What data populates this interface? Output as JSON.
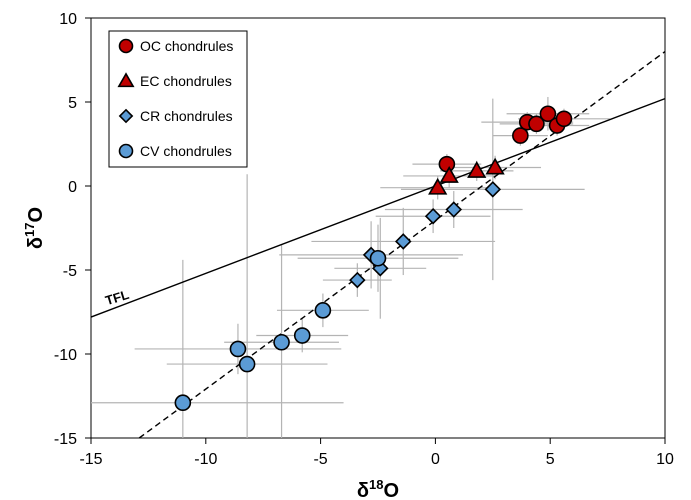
{
  "chart_data": {
    "type": "scatter",
    "xlabel_base": "δ",
    "xlabel_sup": "18",
    "xlabel_tail": "O",
    "ylabel_base": "δ",
    "ylabel_sup": "17",
    "ylabel_tail": "O",
    "xlim": [
      -15,
      10
    ],
    "ylim": [
      -15,
      10
    ],
    "x_ticks": [
      -15,
      -10,
      -5,
      0,
      5,
      10
    ],
    "y_ticks": [
      -15,
      -10,
      -5,
      0,
      5,
      10
    ],
    "x_tick_labels": [
      "-15",
      "-10",
      "-5",
      "0",
      "5",
      "10"
    ],
    "y_tick_labels": [
      "-15",
      "-10",
      "-5",
      "0",
      "5",
      "10"
    ],
    "grid": false,
    "legend_position": "top-left",
    "annotations": [
      {
        "text": "TFL",
        "x": -14.3,
        "y": -7.1
      }
    ],
    "reference_lines": [
      {
        "name": "TFL",
        "style": "solid",
        "x1": -15,
        "y1": -7.8,
        "x2": 10,
        "y2": 5.2
      },
      {
        "name": "",
        "style": "dashed",
        "x1": -12.9,
        "y1": -15,
        "x2": 10,
        "y2": 8.0
      }
    ],
    "series": [
      {
        "name": "OC chondrules",
        "marker": "circle",
        "color": "#c00000",
        "points": [
          {
            "x": 0.5,
            "y": 1.3,
            "xerr": 1.5,
            "yerr": 0.6
          },
          {
            "x": 3.7,
            "y": 3.0,
            "xerr": 1.2,
            "yerr": 0.6
          },
          {
            "x": 4.0,
            "y": 3.8,
            "xerr": 2.0,
            "yerr": 0.6
          },
          {
            "x": 4.4,
            "y": 3.7,
            "xerr": 1.6,
            "yerr": 0.6
          },
          {
            "x": 4.9,
            "y": 4.3,
            "xerr": 1.8,
            "yerr": 1.0
          },
          {
            "x": 5.3,
            "y": 3.6,
            "xerr": 1.4,
            "yerr": 0.6
          },
          {
            "x": 5.6,
            "y": 4.0,
            "xerr": 2.0,
            "yerr": 0.6
          }
        ]
      },
      {
        "name": "EC chondrules",
        "marker": "triangle",
        "color": "#c00000",
        "points": [
          {
            "x": 0.1,
            "y": -0.1,
            "xerr": 2.5,
            "yerr": 0.7
          },
          {
            "x": 0.6,
            "y": 0.6,
            "xerr": 2.0,
            "yerr": 0.7
          },
          {
            "x": 1.8,
            "y": 0.9,
            "xerr": 1.6,
            "yerr": 0.6
          },
          {
            "x": 2.6,
            "y": 1.1,
            "xerr": 2.0,
            "yerr": 0.7
          }
        ]
      },
      {
        "name": "CR chondrules",
        "marker": "diamond",
        "color": "#5b9bd5",
        "points": [
          {
            "x": 2.5,
            "y": -0.2,
            "xerr": 4.0,
            "yerr": 5.4
          },
          {
            "x": 0.8,
            "y": -1.4,
            "xerr": 3.0,
            "yerr": 1.1
          },
          {
            "x": -0.1,
            "y": -1.8,
            "xerr": 2.5,
            "yerr": 1.0
          },
          {
            "x": -1.4,
            "y": -3.3,
            "xerr": 4.0,
            "yerr": 2.0
          },
          {
            "x": -2.8,
            "y": -4.1,
            "xerr": 4.0,
            "yerr": 2.0
          },
          {
            "x": -2.4,
            "y": -4.9,
            "xerr": 2.0,
            "yerr": 3.0
          },
          {
            "x": -3.4,
            "y": -5.6,
            "xerr": 1.5,
            "yerr": 1.0
          }
        ]
      },
      {
        "name": "CV chondrules",
        "marker": "circle",
        "color": "#5b9bd5",
        "points": [
          {
            "x": -2.5,
            "y": -4.3,
            "xerr": 3.5,
            "yerr": 2.0
          },
          {
            "x": -4.9,
            "y": -7.4,
            "xerr": 2.0,
            "yerr": 1.0
          },
          {
            "x": -5.8,
            "y": -8.9,
            "xerr": 2.0,
            "yerr": 1.0
          },
          {
            "x": -6.7,
            "y": -9.3,
            "xerr": 2.5,
            "yerr": 5.8
          },
          {
            "x": -8.6,
            "y": -9.7,
            "xerr": 4.5,
            "yerr": 1.5
          },
          {
            "x": -8.2,
            "y": -10.6,
            "xerr": 3.5,
            "yerr": 11.3
          },
          {
            "x": -11.0,
            "y": -12.9,
            "xerr": 7.0,
            "yerr": 8.5
          }
        ]
      }
    ]
  }
}
